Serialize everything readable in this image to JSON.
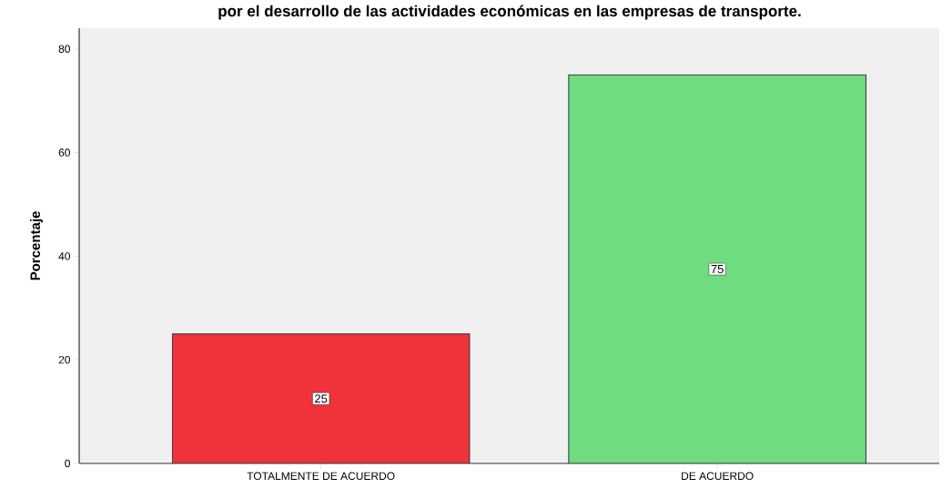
{
  "chart_data": {
    "type": "bar",
    "title": "por el desarrollo de las actividades económicas en las empresas de transporte.",
    "ylabel": "Porcentaje",
    "categories": [
      "TOTALMENTE DE ACUERDO",
      "DE ACUERDO"
    ],
    "values": [
      25,
      75
    ],
    "colors": [
      "#f0323a",
      "#70dc82"
    ],
    "ylim": [
      0,
      84
    ],
    "yticks": [
      0,
      20,
      40,
      60,
      80
    ],
    "data_labels": true
  }
}
